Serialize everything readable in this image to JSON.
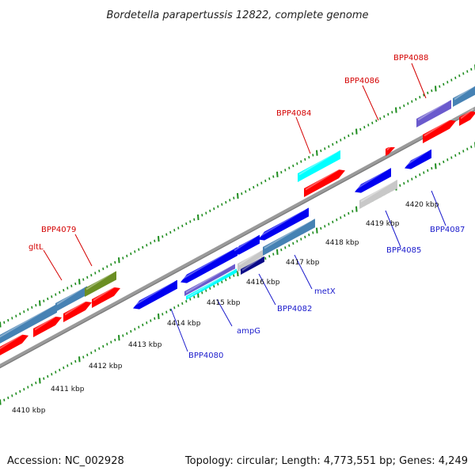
{
  "title": "Bordetella parapertussis 12822, complete genome",
  "footer": {
    "accession": "Accession: NC_002928",
    "summary": "Topology: circular; Length: 4,773,551 bp; Genes: 4,249"
  },
  "colors": {
    "backbone": "#9a9a9a",
    "tick": "#1e8c1e",
    "label_red": "#d40000",
    "label_blue": "#1a1acc",
    "gene_red": "#ff0000",
    "gene_blue": "#0000f0",
    "gene_cyan": "#00ffff",
    "gene_steel": "#4682b4",
    "gene_olive": "#6b8e23",
    "gene_silver": "#c8c8c8",
    "gene_violet": "#6a5acd"
  },
  "tick_labels": [
    "4410 kbp",
    "4411 kbp",
    "4412 kbp",
    "4413 kbp",
    "4414 kbp",
    "4415 kbp",
    "4416 kbp",
    "4417 kbp",
    "4418 kbp",
    "4419 kbp",
    "4420 kbp"
  ],
  "gene_labels_top": [
    "gltL",
    "BPP4079",
    "BPP4084",
    "BPP4086",
    "BPP4088"
  ],
  "gene_labels_bottom": [
    "BPP4080",
    "ampG",
    "BPP4082",
    "metX",
    "BPP4085",
    "BPP4087"
  ]
}
